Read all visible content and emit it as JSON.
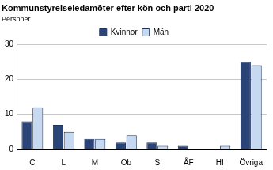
{
  "chart_data": {
    "type": "bar",
    "title": "Kommunstyrelseledamöter efter kön och parti 2020",
    "ylabel": "Personer",
    "categories": [
      "C",
      "L",
      "M",
      "Ob",
      "S",
      "ÅF",
      "HI",
      "Övriga"
    ],
    "series": [
      {
        "name": "Kvinnor",
        "color": "#2b4478",
        "values": [
          8,
          7,
          3,
          2,
          2,
          1,
          0,
          25
        ]
      },
      {
        "name": "Män",
        "color": "#c6d9f0",
        "values": [
          12,
          5,
          3,
          4,
          1,
          0,
          1,
          24
        ]
      }
    ],
    "ylim": [
      0,
      30
    ],
    "yticks": [
      0,
      10,
      20,
      30
    ],
    "grid": true,
    "legend": "top"
  }
}
